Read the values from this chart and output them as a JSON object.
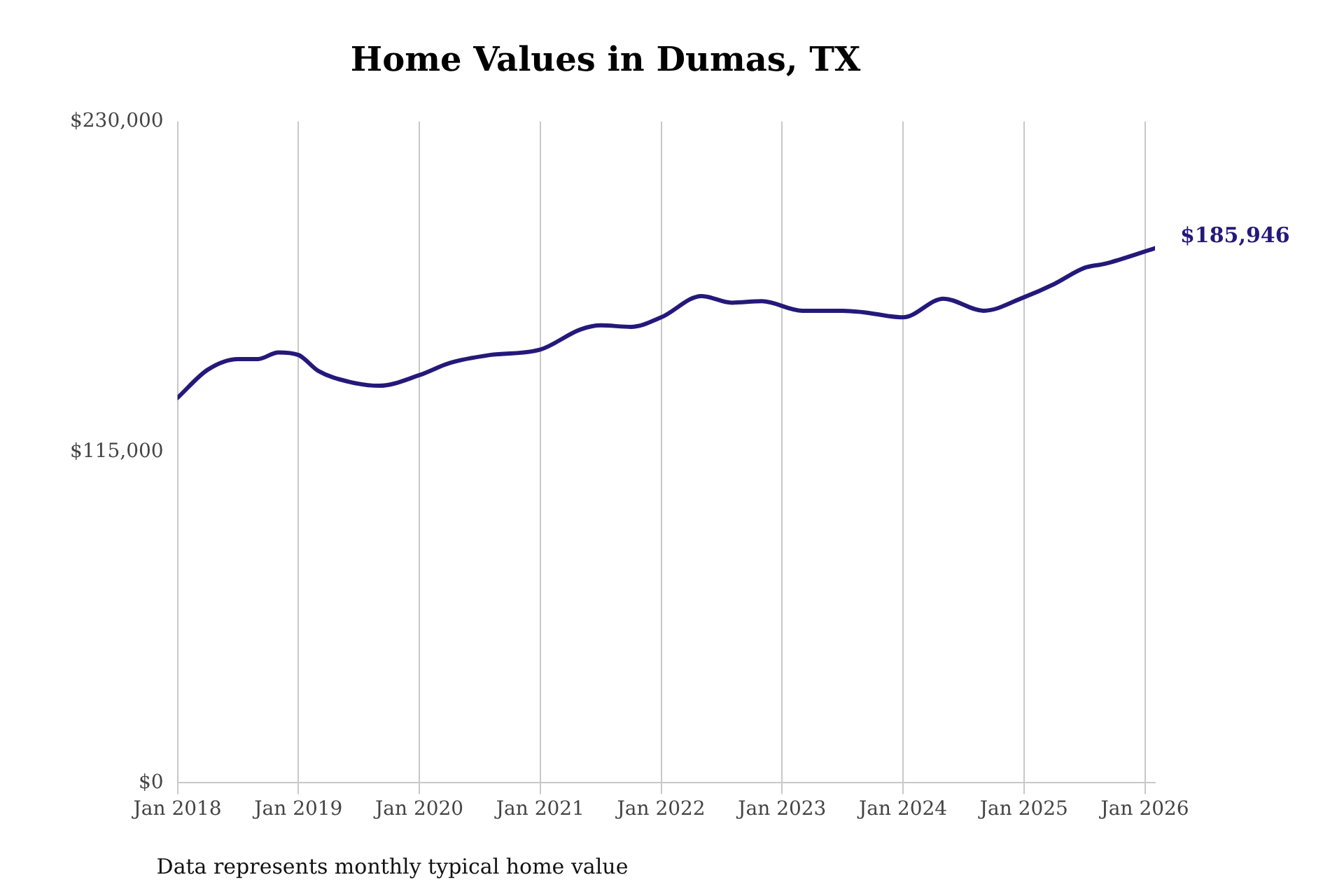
{
  "chart_data": {
    "type": "line",
    "title": "Home Values in Dumas, TX",
    "x": [
      "2018-01",
      "2018-04",
      "2018-07",
      "2018-09",
      "2018-11",
      "2019-01",
      "2019-03",
      "2019-06",
      "2019-09",
      "2020-01",
      "2020-04",
      "2020-08",
      "2021-01",
      "2021-05",
      "2021-07",
      "2021-10",
      "2022-01",
      "2022-05",
      "2022-08",
      "2022-11",
      "2023-03",
      "2023-07",
      "2023-09",
      "2024-01",
      "2024-05",
      "2024-09",
      "2025-01",
      "2025-04",
      "2025-07",
      "2025-09",
      "2026-02"
    ],
    "series": [
      {
        "color": "#24197a",
        "values": [
          133900,
          143700,
          147400,
          147400,
          149700,
          148800,
          143200,
          139500,
          138100,
          141800,
          146000,
          148800,
          150700,
          157700,
          159100,
          158600,
          161900,
          169300,
          167000,
          167500,
          164200,
          164200,
          163700,
          161900,
          168400,
          164200,
          168900,
          173500,
          179100,
          180500,
          185946
        ]
      }
    ],
    "xticks": [
      {
        "value": "2018-01",
        "label": "Jan 2018"
      },
      {
        "value": "2019-01",
        "label": "Jan 2019"
      },
      {
        "value": "2020-01",
        "label": "Jan 2020"
      },
      {
        "value": "2021-01",
        "label": "Jan 2021"
      },
      {
        "value": "2022-01",
        "label": "Jan 2022"
      },
      {
        "value": "2023-01",
        "label": "Jan 2023"
      },
      {
        "value": "2024-01",
        "label": "Jan 2024"
      },
      {
        "value": "2025-01",
        "label": "Jan 2025"
      },
      {
        "value": "2026-01",
        "label": "Jan 2026"
      }
    ],
    "xlim": [
      "2018-01",
      "2026-02"
    ],
    "ylim": [
      0,
      230000
    ],
    "yticks": [
      {
        "value": 0,
        "label": "$0"
      },
      {
        "value": 115000,
        "label": "$115,000"
      },
      {
        "value": 230000,
        "label": "$230,000"
      }
    ],
    "grid": "x",
    "legend": false,
    "marker": "none",
    "line_style": "solid",
    "annotations": [
      {
        "text": "$185,946",
        "x": "2026-02",
        "y": 185946
      },
      "Data represents monthly typical home value"
    ]
  }
}
